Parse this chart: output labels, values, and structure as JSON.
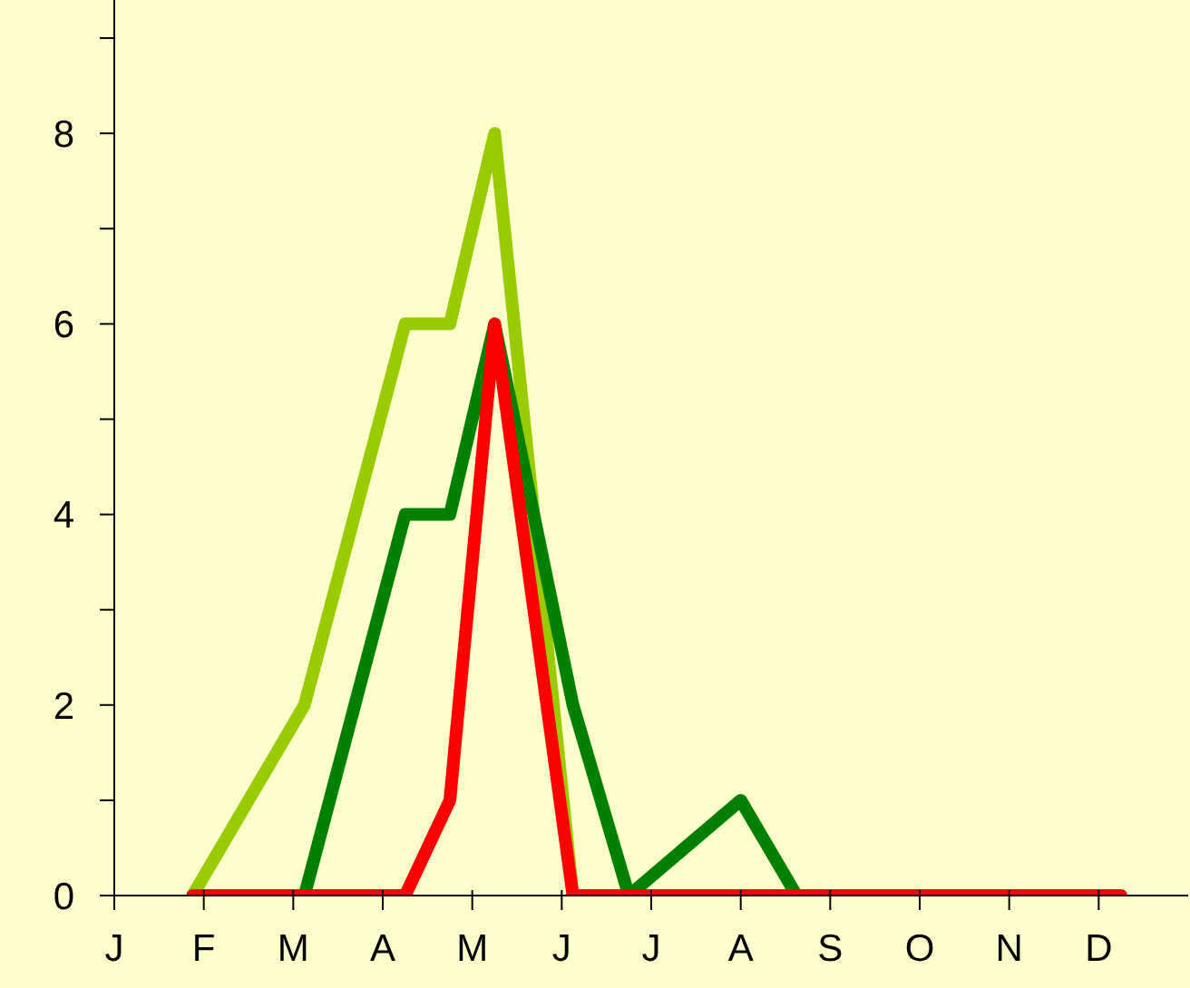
{
  "chart_data": {
    "type": "line",
    "ylim": [
      0,
      9.4
    ],
    "categories": [
      "J",
      null,
      null,
      null,
      null,
      null,
      null,
      null,
      "F",
      null,
      null,
      null,
      null,
      null,
      null,
      null,
      "M",
      null,
      null,
      null,
      null,
      null,
      null,
      null,
      "A",
      null,
      null,
      null,
      null,
      null,
      null,
      null,
      "M",
      null,
      null,
      null,
      null,
      null,
      null,
      null,
      "J",
      null,
      null,
      null,
      null,
      null,
      null,
      null,
      "J",
      null,
      null,
      null,
      null,
      null,
      null,
      null,
      "A",
      null,
      null,
      null,
      null,
      null,
      null,
      null,
      "S",
      null,
      null,
      null,
      null,
      null,
      null,
      null,
      "O",
      null,
      null,
      null,
      null,
      null,
      null,
      null,
      "N",
      null,
      null,
      null,
      null,
      null,
      null,
      null,
      "D",
      null,
      null,
      null,
      null,
      null,
      null,
      null,
      null
    ],
    "yticks": [
      0,
      {
        "value": 1,
        "label": null
      },
      2,
      {
        "value": 3,
        "label": null
      },
      4,
      {
        "value": 5,
        "label": null
      },
      6,
      {
        "value": 7,
        "label": null
      },
      8,
      {
        "value": 9,
        "label": null
      }
    ],
    "marker": "none",
    "line_style": "solid",
    "series": [
      {
        "color": "#99cc00",
        "values": [
          null,
          null,
          null,
          null,
          null,
          null,
          null,
          0,
          null,
          null,
          null,
          null,
          null,
          null,
          null,
          null,
          null,
          2,
          null,
          null,
          null,
          null,
          null,
          null,
          null,
          null,
          6,
          null,
          null,
          null,
          6,
          null,
          null,
          null,
          8,
          null,
          null,
          null,
          null,
          null,
          null,
          0,
          null,
          null,
          null,
          null,
          null,
          null,
          null,
          null,
          null,
          null,
          null,
          null,
          null,
          null,
          null,
          null,
          null,
          null,
          null,
          null,
          null,
          null,
          null,
          null,
          null,
          null,
          null,
          null,
          null,
          null,
          null,
          null,
          null,
          null,
          null,
          null,
          null,
          null,
          null,
          null,
          null,
          null,
          null,
          null,
          null,
          null,
          null,
          null,
          null,
          null,
          null,
          null,
          null,
          null,
          null
        ]
      },
      {
        "color": "#008000",
        "values": [
          null,
          null,
          null,
          null,
          null,
          null,
          null,
          null,
          null,
          null,
          null,
          null,
          null,
          null,
          null,
          null,
          null,
          0,
          null,
          null,
          null,
          null,
          null,
          null,
          null,
          null,
          4,
          null,
          null,
          null,
          4,
          null,
          null,
          null,
          6,
          null,
          null,
          null,
          null,
          null,
          null,
          2,
          null,
          null,
          null,
          null,
          0,
          null,
          null,
          null,
          null,
          null,
          null,
          null,
          null,
          null,
          1,
          null,
          null,
          null,
          null,
          0,
          null,
          null,
          null,
          null,
          null,
          null,
          null,
          null,
          null,
          null,
          null,
          null,
          null,
          null,
          null,
          null,
          null,
          null,
          null,
          null,
          null,
          null,
          null,
          null,
          null,
          null,
          null,
          null,
          null,
          null,
          null,
          null,
          null,
          null,
          null
        ]
      },
      {
        "color": "#ff0000",
        "values": [
          null,
          null,
          null,
          null,
          null,
          null,
          null,
          0,
          null,
          null,
          null,
          null,
          null,
          null,
          null,
          null,
          null,
          null,
          null,
          null,
          null,
          null,
          null,
          null,
          null,
          null,
          0,
          null,
          null,
          null,
          1,
          null,
          null,
          null,
          6,
          null,
          null,
          null,
          null,
          null,
          null,
          0,
          null,
          null,
          null,
          null,
          null,
          null,
          null,
          null,
          null,
          null,
          null,
          null,
          null,
          null,
          null,
          null,
          null,
          null,
          null,
          null,
          null,
          null,
          null,
          null,
          null,
          null,
          null,
          null,
          null,
          null,
          null,
          null,
          null,
          null,
          null,
          null,
          null,
          null,
          null,
          null,
          null,
          null,
          null,
          null,
          null,
          null,
          null,
          null,
          0,
          null,
          null,
          null,
          null,
          null,
          null
        ]
      }
    ]
  }
}
